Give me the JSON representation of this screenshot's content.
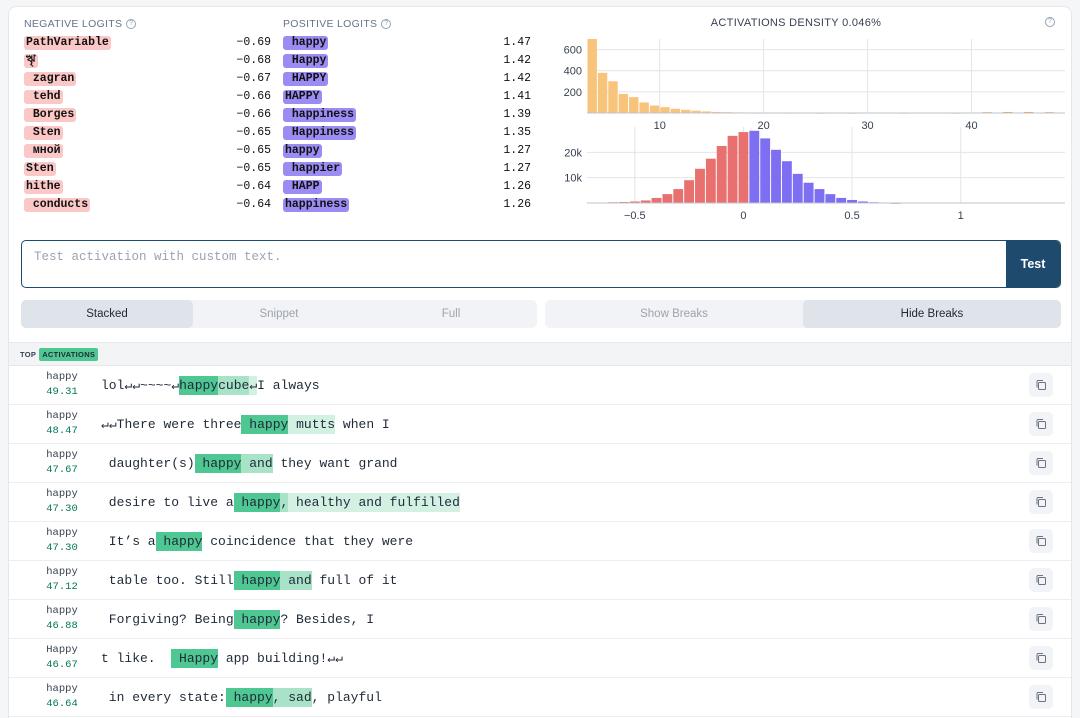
{
  "negative_logits": {
    "title": "NEGATIVE LOGITS",
    "items": [
      {
        "token": "PathVariable",
        "value": "−0.69"
      },
      {
        "token": "ৠ",
        "value": "−0.68"
      },
      {
        "token": " zagran",
        "value": "−0.67"
      },
      {
        "token": " tehd",
        "value": "−0.66"
      },
      {
        "token": " Borges",
        "value": "−0.66"
      },
      {
        "token": " Sten",
        "value": "−0.65"
      },
      {
        "token": " мной",
        "value": "−0.65"
      },
      {
        "token": "Sten",
        "value": "−0.65"
      },
      {
        "token": "hithe",
        "value": "−0.64"
      },
      {
        "token": " conducts",
        "value": "−0.64"
      }
    ]
  },
  "positive_logits": {
    "title": "POSITIVE LOGITS",
    "items": [
      {
        "token": " happy",
        "value": "1.47"
      },
      {
        "token": " Happy",
        "value": "1.42"
      },
      {
        "token": " HAPPY",
        "value": "1.42"
      },
      {
        "token": "HAPPY",
        "value": "1.41"
      },
      {
        "token": " happiness",
        "value": "1.39"
      },
      {
        "token": " Happiness",
        "value": "1.35"
      },
      {
        "token": "happy",
        "value": "1.27"
      },
      {
        "token": " happier",
        "value": "1.27"
      },
      {
        "token": " HAPP",
        "value": "1.26"
      },
      {
        "token": "happiness",
        "value": "1.26"
      }
    ]
  },
  "density": {
    "title": "ACTIVATIONS DENSITY 0.046%"
  },
  "chart_data": [
    {
      "type": "bar",
      "title": "",
      "xlim": [
        3,
        49
      ],
      "xticks": [
        10,
        20,
        30,
        40
      ],
      "ylim": [
        0,
        700
      ],
      "yticks": [
        200,
        400,
        600
      ],
      "grid": true,
      "bins": [
        {
          "x": 3.5,
          "y": 700,
          "color": "#f8c37a"
        },
        {
          "x": 4.5,
          "y": 380,
          "color": "#f8c37a"
        },
        {
          "x": 5.5,
          "y": 300,
          "color": "#f8c37a"
        },
        {
          "x": 6.5,
          "y": 180,
          "color": "#f8c37a"
        },
        {
          "x": 7.5,
          "y": 150,
          "color": "#f8c37a"
        },
        {
          "x": 8.5,
          "y": 100,
          "color": "#f8c37a"
        },
        {
          "x": 9.5,
          "y": 70,
          "color": "#f8c37a"
        },
        {
          "x": 10.5,
          "y": 55,
          "color": "#f8c37a"
        },
        {
          "x": 11.5,
          "y": 40,
          "color": "#f8c37a"
        },
        {
          "x": 12.5,
          "y": 30,
          "color": "#f8c37a"
        },
        {
          "x": 13.5,
          "y": 22,
          "color": "#f8c37a"
        },
        {
          "x": 14.5,
          "y": 15,
          "color": "#f8c37a"
        },
        {
          "x": 15.5,
          "y": 10,
          "color": "#f8c37a"
        },
        {
          "x": 16.5,
          "y": 8,
          "color": "#f8c37a"
        },
        {
          "x": 17.5,
          "y": 6,
          "color": "#f8c37a"
        },
        {
          "x": 18.5,
          "y": 5,
          "color": "#f8c37a"
        },
        {
          "x": 19.5,
          "y": 4,
          "color": "#f8c37a"
        },
        {
          "x": 22.5,
          "y": 4,
          "color": "#f8c37a"
        },
        {
          "x": 25.5,
          "y": 3,
          "color": "#f8c37a"
        },
        {
          "x": 28.5,
          "y": 3,
          "color": "#f8c37a"
        },
        {
          "x": 33.5,
          "y": 3,
          "color": "#f8c37a"
        },
        {
          "x": 38.5,
          "y": 3,
          "color": "#f8c37a"
        },
        {
          "x": 41.5,
          "y": 8,
          "color": "#f59e42"
        },
        {
          "x": 43.5,
          "y": 10,
          "color": "#f59e42"
        },
        {
          "x": 45.5,
          "y": 10,
          "color": "#f59e42"
        },
        {
          "x": 47.5,
          "y": 8,
          "color": "#f59e42"
        }
      ]
    },
    {
      "type": "bar",
      "title": "",
      "xlim": [
        -0.72,
        1.48
      ],
      "xticks": [
        -0.5,
        0,
        0.5,
        1
      ],
      "xticklabels": [
        "−0.5",
        "0",
        "0.5",
        "1"
      ],
      "ylim": [
        0,
        30000
      ],
      "yticks": [
        10000,
        20000
      ],
      "yticklabels": [
        "10k",
        "20k"
      ],
      "grid": true,
      "bins": [
        {
          "x": -0.65,
          "y": 200,
          "color": "#e8706f"
        },
        {
          "x": -0.6,
          "y": 300,
          "color": "#e8706f"
        },
        {
          "x": -0.55,
          "y": 400,
          "color": "#e8706f"
        },
        {
          "x": -0.5,
          "y": 600,
          "color": "#e8706f"
        },
        {
          "x": -0.45,
          "y": 1000,
          "color": "#e8706f"
        },
        {
          "x": -0.4,
          "y": 2000,
          "color": "#e8706f"
        },
        {
          "x": -0.35,
          "y": 3500,
          "color": "#e8706f"
        },
        {
          "x": -0.3,
          "y": 5500,
          "color": "#e8706f"
        },
        {
          "x": -0.25,
          "y": 9000,
          "color": "#e8706f"
        },
        {
          "x": -0.2,
          "y": 13500,
          "color": "#e8706f"
        },
        {
          "x": -0.15,
          "y": 17500,
          "color": "#e8706f"
        },
        {
          "x": -0.1,
          "y": 22500,
          "color": "#e8706f"
        },
        {
          "x": -0.05,
          "y": 26500,
          "color": "#e8706f"
        },
        {
          "x": 0.0,
          "y": 28000,
          "color": "#e8706f"
        },
        {
          "x": 0.05,
          "y": 28500,
          "color": "#7d6ef2"
        },
        {
          "x": 0.1,
          "y": 25500,
          "color": "#7d6ef2"
        },
        {
          "x": 0.15,
          "y": 21000,
          "color": "#7d6ef2"
        },
        {
          "x": 0.2,
          "y": 16500,
          "color": "#7d6ef2"
        },
        {
          "x": 0.25,
          "y": 11500,
          "color": "#7d6ef2"
        },
        {
          "x": 0.3,
          "y": 8000,
          "color": "#7d6ef2"
        },
        {
          "x": 0.35,
          "y": 5500,
          "color": "#7d6ef2"
        },
        {
          "x": 0.4,
          "y": 3500,
          "color": "#7d6ef2"
        },
        {
          "x": 0.45,
          "y": 2000,
          "color": "#7d6ef2"
        },
        {
          "x": 0.5,
          "y": 1200,
          "color": "#7d6ef2"
        },
        {
          "x": 0.55,
          "y": 600,
          "color": "#7d6ef2"
        },
        {
          "x": 0.6,
          "y": 300,
          "color": "#7d6ef2"
        },
        {
          "x": 0.65,
          "y": 200,
          "color": "#7d6ef2"
        },
        {
          "x": 0.7,
          "y": 100,
          "color": "#7d6ef2"
        }
      ]
    }
  ],
  "test_input": {
    "placeholder": "Test activation with custom text.",
    "button": "Test"
  },
  "view_modes": [
    {
      "label": "Stacked",
      "active": true
    },
    {
      "label": "Snippet",
      "active": false
    },
    {
      "label": "Full",
      "active": false
    }
  ],
  "break_modes": [
    {
      "label": "Show Breaks",
      "active": false
    },
    {
      "label": "Hide Breaks",
      "active": true
    }
  ],
  "activations": {
    "label_top": "TOP",
    "label_badge": "ACTIVATIONS",
    "rows": [
      {
        "token": "happy",
        "value": "49.31",
        "segments": [
          {
            "t": "lol↵↵~~~~↵",
            "h": 0
          },
          {
            "t": "happy",
            "h": 1
          },
          {
            "t": "cube",
            "h": 2
          },
          {
            "t": "↵",
            "h": 3
          },
          {
            "t": "I always",
            "h": 0
          }
        ]
      },
      {
        "token": "happy",
        "value": "48.47",
        "segments": [
          {
            "t": "↵↵There were three",
            "h": 0
          },
          {
            "t": " happy",
            "h": 1
          },
          {
            "t": " mutts",
            "h": 3
          },
          {
            "t": " when I",
            "h": 0
          }
        ]
      },
      {
        "token": "happy",
        "value": "47.67",
        "segments": [
          {
            "t": " daughter(s)",
            "h": 0
          },
          {
            "t": " happy",
            "h": 1
          },
          {
            "t": " and",
            "h": 2
          },
          {
            "t": " they want grand",
            "h": 0
          }
        ]
      },
      {
        "token": "happy",
        "value": "47.30",
        "segments": [
          {
            "t": " desire to live a",
            "h": 0
          },
          {
            "t": " happy",
            "h": 1
          },
          {
            "t": ",",
            "h": 2
          },
          {
            "t": " healthy and fulfilled",
            "h": 3
          }
        ]
      },
      {
        "token": "happy",
        "value": "47.30",
        "segments": [
          {
            "t": " It’s a",
            "h": 0
          },
          {
            "t": " happy",
            "h": 1
          },
          {
            "t": " coincidence that they were",
            "h": 0
          }
        ]
      },
      {
        "token": "happy",
        "value": "47.12",
        "segments": [
          {
            "t": " table too. Still",
            "h": 0
          },
          {
            "t": " happy",
            "h": 1
          },
          {
            "t": " and",
            "h": 2
          },
          {
            "t": " full of it",
            "h": 0
          }
        ]
      },
      {
        "token": "happy",
        "value": "46.88",
        "segments": [
          {
            "t": " Forgiving? Being",
            "h": 0
          },
          {
            "t": " happy",
            "h": 1
          },
          {
            "t": "? Besides, I",
            "h": 0
          }
        ]
      },
      {
        "token": "Happy",
        "value": "46.67",
        "segments": [
          {
            "t": "t like.  ",
            "h": 0
          },
          {
            "t": " Happy",
            "h": 1
          },
          {
            "t": " app building!↵↵",
            "h": 0
          }
        ]
      },
      {
        "token": "happy",
        "value": "46.64",
        "segments": [
          {
            "t": " in every state:",
            "h": 0
          },
          {
            "t": " happy",
            "h": 1
          },
          {
            "t": ",",
            "h": 2
          },
          {
            "t": " sad",
            "h": 2
          },
          {
            "t": ", playful",
            "h": 0
          }
        ]
      }
    ]
  },
  "colors": {
    "negative_token": "#fbc7c7",
    "positive_token": "#9b8cf3",
    "activation_high": "#4fc792",
    "activation_mid": "#a8e3c7",
    "activation_low": "#d2f1e2",
    "accent": "#1e4a6e"
  }
}
